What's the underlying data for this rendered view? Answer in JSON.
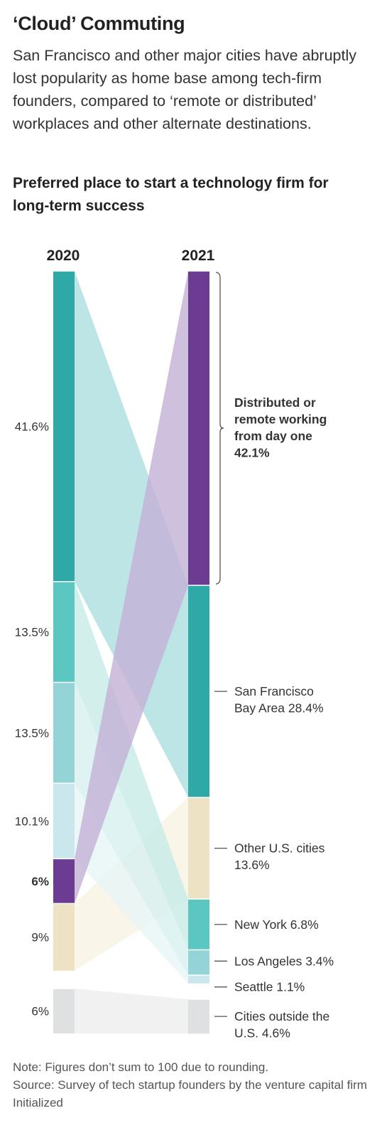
{
  "header": {
    "title": "‘Cloud’ Commuting",
    "subtitle": "San Francisco and other major cities have abruptly lost popularity as home base among tech-firm founders, compared to ‘remote or distributed’ workplaces and other alternate destinations.",
    "chart_title": "Preferred place to start a technology firm for long-term success"
  },
  "chart_data": {
    "type": "slope-stacked-bar",
    "title": "Preferred place to start a technology firm for long-term success",
    "years": [
      "2020",
      "2021"
    ],
    "categories": [
      {
        "key": "sf",
        "label": "San Francisco Bay Area 28.4%",
        "label_lines": [
          "San Francisco",
          "Bay Area 28.4%"
        ],
        "v2020": 41.6,
        "v2021": 28.4,
        "label2020": "41.6%",
        "color": "#2fa8a8",
        "band": "#a8dcdc"
      },
      {
        "key": "ny",
        "label": "New York 6.8%",
        "label_lines": [
          "New York 6.8%"
        ],
        "v2020": 13.5,
        "v2021": 6.8,
        "label2020": "13.5%",
        "color": "#5cc6c0",
        "band": "#c3e9e6"
      },
      {
        "key": "la",
        "label": "Los Angeles 3.4%",
        "label_lines": [
          "Los Angeles 3.4%"
        ],
        "v2020": 13.5,
        "v2021": 3.4,
        "label2020": "13.5%",
        "color": "#94d4d6",
        "band": "#d6efef"
      },
      {
        "key": "seattle",
        "label": "Seattle 1.1%",
        "label_lines": [
          "Seattle 1.1%"
        ],
        "v2020": 10.1,
        "v2021": 1.1,
        "label2020": "10.1%",
        "color": "#c9e7ec",
        "band": "#e6f4f6"
      },
      {
        "key": "remote",
        "label": "Distributed or remote working from day one 42.1%",
        "label_lines": [
          "Distributed or",
          "remote working",
          "from day one",
          "42.1%"
        ],
        "v2020": 6,
        "v2021": 42.1,
        "label2020": "6%",
        "color": "#6b3c91",
        "band": "#c3b0d6",
        "emphasis": true
      },
      {
        "key": "other_us",
        "label": "Other U.S. cities 13.6%",
        "label_lines": [
          "Other U.S. cities",
          "13.6%"
        ],
        "v2020": 9,
        "v2021": 13.6,
        "label2020": "9%",
        "color": "#ede3c4",
        "band": "#f7f1e1"
      },
      {
        "key": "outside_us",
        "label": "Cities outside the U.S. 4.6%",
        "label_lines": [
          "Cities outside the",
          "U.S. 4.6%"
        ],
        "v2020": 6,
        "v2021": 4.6,
        "label2020": "6%",
        "color": "#dfe0e2",
        "band": "#ececec"
      }
    ]
  },
  "footer": {
    "note": "Note: Figures don’t sum to 100 due to rounding.",
    "source": "Source: Survey of tech startup founders by the venture capital firm Initialized"
  }
}
